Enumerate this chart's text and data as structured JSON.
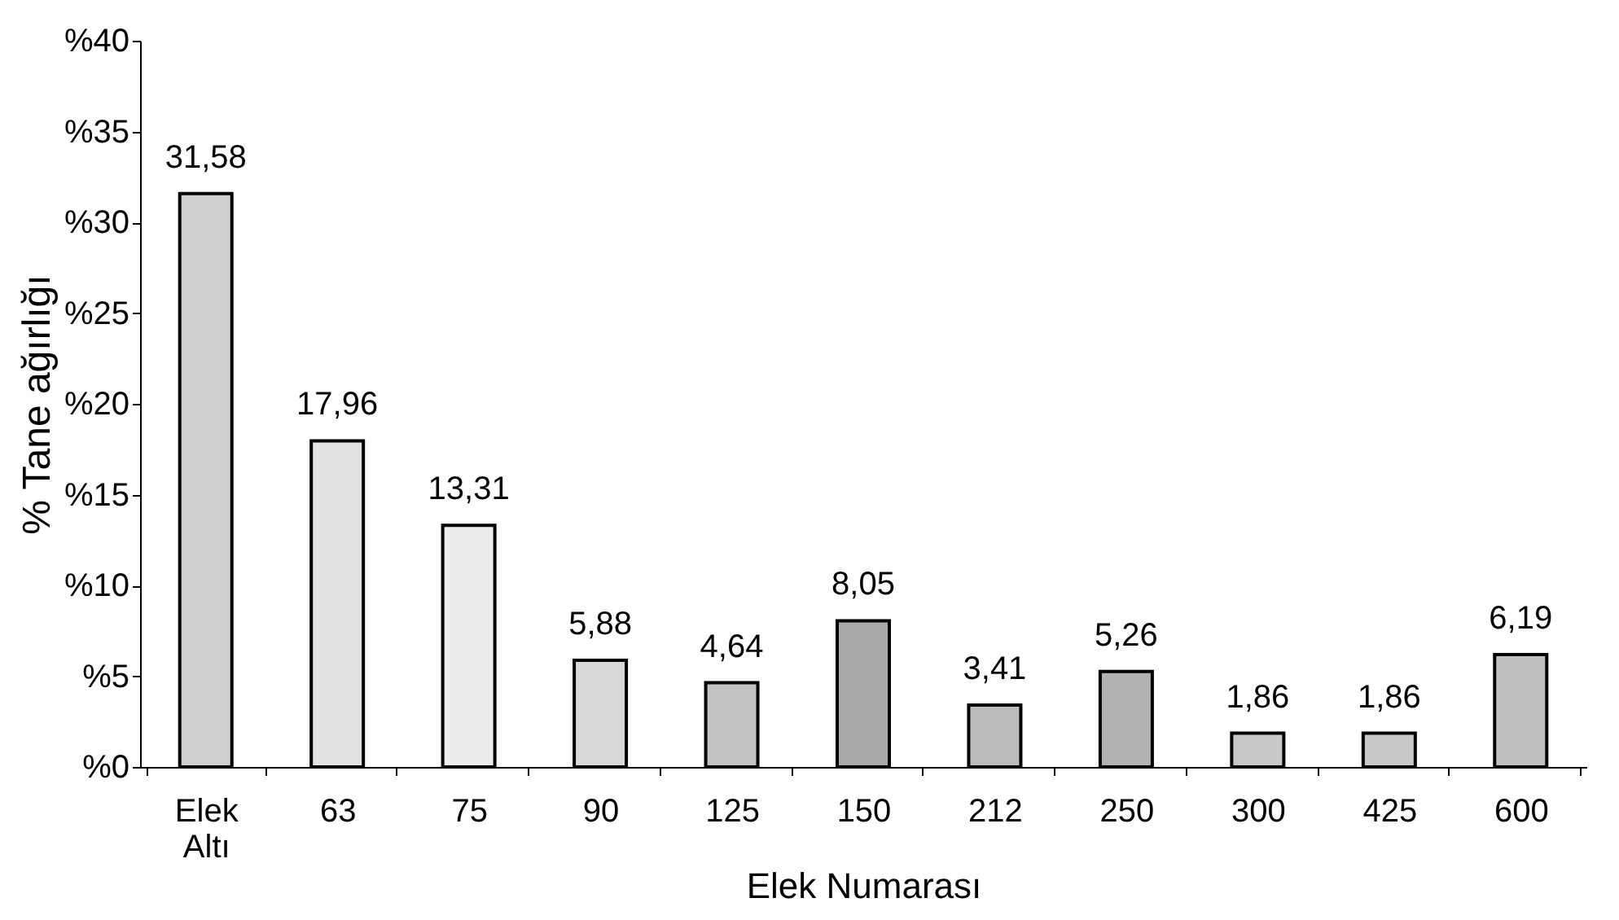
{
  "chart_data": {
    "type": "bar",
    "xlabel": "Elek Numarası",
    "ylabel": "% Tane ağırlığı",
    "categories": [
      "Elek Altı",
      "63",
      "75",
      "90",
      "125",
      "150",
      "212",
      "250",
      "300",
      "425",
      "600"
    ],
    "values": [
      31.58,
      17.96,
      13.31,
      5.88,
      4.64,
      8.05,
      3.41,
      5.26,
      1.86,
      1.86,
      6.19
    ],
    "value_labels": [
      "31,58",
      "17,96",
      "13,31",
      "5,88",
      "4,64",
      "8,05",
      "3,41",
      "5,26",
      "1,86",
      "1,86",
      "6,19"
    ],
    "colors": [
      "#cfcfcf",
      "#e2e2e2",
      "#ededed",
      "#d9d9d9",
      "#c2c2c2",
      "#a9a9a9",
      "#bcbcbc",
      "#b2b2b2",
      "#c8c8c8",
      "#c8c8c8",
      "#c0c0c0"
    ],
    "ylim": [
      0,
      40
    ],
    "yticks": [
      {
        "value": 0,
        "label": "%0"
      },
      {
        "value": 5,
        "label": "%5"
      },
      {
        "value": 10,
        "label": "%10"
      },
      {
        "value": 15,
        "label": "%15"
      },
      {
        "value": 20,
        "label": "%20"
      },
      {
        "value": 25,
        "label": "%25"
      },
      {
        "value": 30,
        "label": "%30"
      },
      {
        "value": 35,
        "label": "%35"
      },
      {
        "value": 40,
        "label": "%40"
      }
    ],
    "grid": false,
    "legend": false
  }
}
